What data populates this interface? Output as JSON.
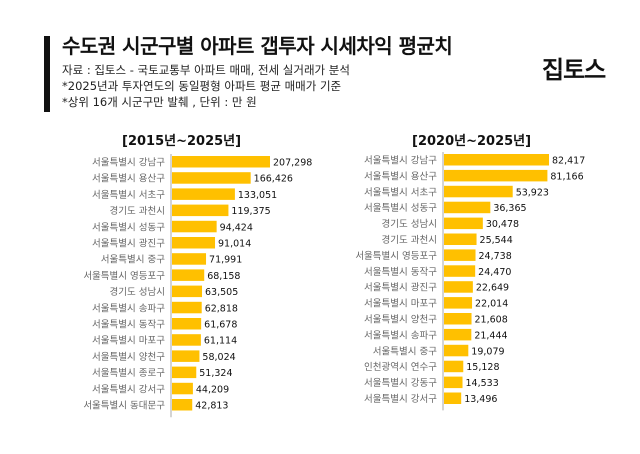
{
  "header": {
    "title": "수도권 시군구별 아파트 갭투자 시세차익 평균치",
    "source": "자료 : 집토스 - 국토교통부 아파트 매매, 전세 실거래가 분석",
    "note1": "*2025년과 투자연도의 동일평형 아파트 평균 매매가 기준",
    "note2": "*상위 16개 시군구만 발췌 , 단위 : 만 원",
    "logo": "집토스"
  },
  "colors": {
    "bar": "#FFC000",
    "axis": "#aaaaaa",
    "text": "#111111"
  },
  "chart_data": [
    {
      "type": "bar",
      "orientation": "horizontal",
      "title": "[2015년~2025년]",
      "categories": [
        "서울특별시 강남구",
        "서울특별시 용산구",
        "서울특별시 서초구",
        "경기도 과천시",
        "서울특별시 성동구",
        "서울특별시 광진구",
        "서울특별시 중구",
        "서울특별시 영등포구",
        "경기도 성남시",
        "서울특별시 송파구",
        "서울특별시 동작구",
        "서울특별시 마포구",
        "서울특별시 양천구",
        "서울특별시 종로구",
        "서울특별시 강서구",
        "서울특별시 동대문구"
      ],
      "values": [
        207298,
        166426,
        133051,
        119375,
        94424,
        91014,
        71991,
        68158,
        63505,
        62818,
        61678,
        61114,
        58024,
        51324,
        44209,
        42813
      ],
      "value_labels": [
        "207,298",
        "166,426",
        "133,051",
        "119,375",
        "94,424",
        "91,014",
        "71,991",
        "68,158",
        "63,505",
        "62,818",
        "61,678",
        "61,114",
        "58,024",
        "51,324",
        "44,209",
        "42,813"
      ]
    },
    {
      "type": "bar",
      "orientation": "horizontal",
      "title": "[2020년~2025년]",
      "categories": [
        "서울특별시 강남구",
        "서울특별시 용산구",
        "서울특별시 서초구",
        "서울특별시 성동구",
        "경기도 성남시",
        "경기도 과천시",
        "서울특별시 영등포구",
        "서울특별시 동작구",
        "서울특별시 광진구",
        "서울특별시 마포구",
        "서울특별시 양천구",
        "서울특별시 송파구",
        "서울특별시 중구",
        "인천광역시 연수구",
        "서울특별시 강동구",
        "서울특별시 강서구"
      ],
      "values": [
        82417,
        81166,
        53923,
        36365,
        30478,
        25544,
        24738,
        24470,
        22649,
        22014,
        21608,
        21444,
        19079,
        15128,
        14533,
        13496
      ],
      "value_labels": [
        "82,417",
        "81,166",
        "53,923",
        "36,365",
        "30,478",
        "25,544",
        "24,738",
        "24,470",
        "22,649",
        "22,014",
        "21,608",
        "21,444",
        "19,079",
        "15,128",
        "14,533",
        "13,496"
      ]
    }
  ]
}
